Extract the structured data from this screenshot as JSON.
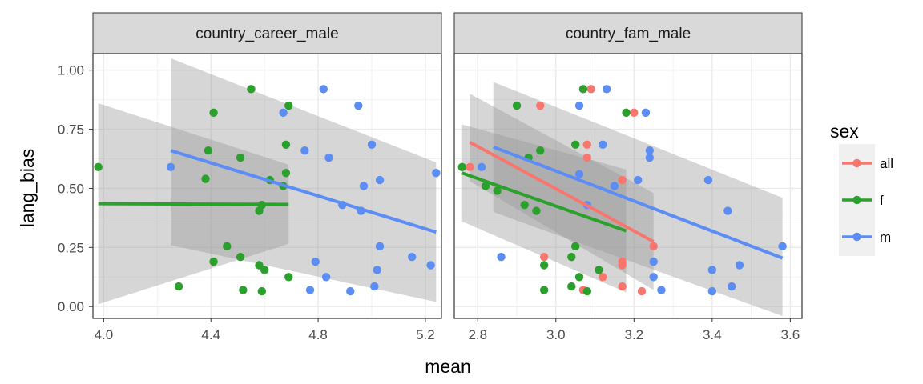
{
  "chart_data": {
    "type": "scatter",
    "x_label": "mean",
    "y_label": "lang_bias",
    "legend": {
      "title": "sex",
      "position": "right"
    },
    "colors": {
      "all": "#F8766D",
      "f": "#2CA02C",
      "m": "#5B8DF5"
    },
    "y_ticks": [
      "0.00",
      "0.25",
      "0.50",
      "0.75",
      "1.00"
    ],
    "y_tick_values": [
      0,
      0.25,
      0.5,
      0.75,
      1.0
    ],
    "ylim": [
      -0.05,
      1.07
    ],
    "grid": true,
    "panels": [
      {
        "title": "country_career_male",
        "xlim": [
          3.96,
          5.26
        ],
        "x_ticks": [
          "4.0",
          "4.4",
          "4.8",
          "5.2"
        ],
        "x_tick_values": [
          4.0,
          4.4,
          4.8,
          5.2
        ],
        "points": {
          "f": [
            [
              3.98,
              0.59
            ],
            [
              4.28,
              0.085
            ],
            [
              4.38,
              0.54
            ],
            [
              4.39,
              0.66
            ],
            [
              4.41,
              0.82
            ],
            [
              4.41,
              0.19
            ],
            [
              4.46,
              0.255
            ],
            [
              4.51,
              0.21
            ],
            [
              4.51,
              0.63
            ],
            [
              4.52,
              0.07
            ],
            [
              4.55,
              0.92
            ],
            [
              4.58,
              0.175
            ],
            [
              4.58,
              0.405
            ],
            [
              4.59,
              0.43
            ],
            [
              4.59,
              0.065
            ],
            [
              4.6,
              0.155
            ],
            [
              4.62,
              0.535
            ],
            [
              4.67,
              0.51
            ],
            [
              4.68,
              0.565
            ],
            [
              4.68,
              0.685
            ],
            [
              4.69,
              0.85
            ],
            [
              4.69,
              0.125
            ]
          ],
          "m": [
            [
              4.25,
              0.59
            ],
            [
              4.67,
              0.82
            ],
            [
              4.75,
              0.66
            ],
            [
              4.77,
              0.07
            ],
            [
              4.79,
              0.19
            ],
            [
              4.82,
              0.92
            ],
            [
              4.83,
              0.125
            ],
            [
              4.84,
              0.63
            ],
            [
              4.89,
              0.43
            ],
            [
              4.92,
              0.065
            ],
            [
              4.95,
              0.85
            ],
            [
              4.96,
              0.405
            ],
            [
              4.97,
              0.51
            ],
            [
              5.0,
              0.685
            ],
            [
              5.01,
              0.085
            ],
            [
              5.02,
              0.155
            ],
            [
              5.03,
              0.535
            ],
            [
              5.03,
              0.255
            ],
            [
              5.15,
              0.21
            ],
            [
              5.22,
              0.175
            ],
            [
              5.24,
              0.565
            ]
          ]
        },
        "fits": {
          "f": {
            "x": [
              3.98,
              4.69
            ],
            "y": [
              0.435,
              0.432
            ],
            "band_lo": [
              0.01,
              0.265
            ],
            "band_hi": [
              0.86,
              0.6
            ]
          },
          "m": {
            "x": [
              4.25,
              5.24
            ],
            "y": [
              0.66,
              0.315
            ],
            "band_lo": [
              0.26,
              0.02
            ],
            "band_hi": [
              1.05,
              0.61
            ]
          }
        }
      },
      {
        "title": "country_fam_male",
        "xlim": [
          2.74,
          3.63
        ],
        "x_ticks": [
          "2.8",
          "3.0",
          "3.2",
          "3.4",
          "3.6"
        ],
        "x_tick_values": [
          2.8,
          3.0,
          3.2,
          3.4,
          3.6
        ],
        "points": {
          "all": [
            [
              2.78,
              0.59
            ],
            [
              2.96,
              0.85
            ],
            [
              2.97,
              0.21
            ],
            [
              3.07,
              0.07
            ],
            [
              3.08,
              0.685
            ],
            [
              3.08,
              0.63
            ],
            [
              3.09,
              0.92
            ],
            [
              3.12,
              0.125
            ],
            [
              3.17,
              0.175
            ],
            [
              3.17,
              0.085
            ],
            [
              3.17,
              0.535
            ],
            [
              3.17,
              0.19
            ],
            [
              3.2,
              0.82
            ],
            [
              3.22,
              0.065
            ],
            [
              3.25,
              0.255
            ]
          ],
          "f": [
            [
              2.76,
              0.59
            ],
            [
              2.82,
              0.51
            ],
            [
              2.85,
              0.49
            ],
            [
              2.9,
              0.85
            ],
            [
              2.92,
              0.43
            ],
            [
              2.93,
              0.63
            ],
            [
              2.95,
              0.405
            ],
            [
              2.96,
              0.66
            ],
            [
              2.97,
              0.175
            ],
            [
              2.97,
              0.07
            ],
            [
              3.04,
              0.21
            ],
            [
              3.04,
              0.085
            ],
            [
              3.05,
              0.255
            ],
            [
              3.05,
              0.685
            ],
            [
              3.06,
              0.125
            ],
            [
              3.07,
              0.92
            ],
            [
              3.08,
              0.065
            ],
            [
              3.11,
              0.155
            ],
            [
              3.18,
              0.82
            ]
          ],
          "m": [
            [
              2.81,
              0.59
            ],
            [
              2.86,
              0.21
            ],
            [
              3.06,
              0.85
            ],
            [
              3.06,
              0.56
            ],
            [
              3.08,
              0.43
            ],
            [
              3.12,
              0.685
            ],
            [
              3.13,
              0.92
            ],
            [
              3.15,
              0.51
            ],
            [
              3.21,
              0.535
            ],
            [
              3.23,
              0.82
            ],
            [
              3.24,
              0.66
            ],
            [
              3.24,
              0.63
            ],
            [
              3.25,
              0.125
            ],
            [
              3.25,
              0.19
            ],
            [
              3.27,
              0.07
            ],
            [
              3.39,
              0.535
            ],
            [
              3.4,
              0.155
            ],
            [
              3.4,
              0.065
            ],
            [
              3.44,
              0.405
            ],
            [
              3.45,
              0.085
            ],
            [
              3.47,
              0.175
            ],
            [
              3.58,
              0.255
            ]
          ]
        },
        "fits": {
          "all": {
            "x": [
              2.78,
              3.25
            ],
            "y": [
              0.695,
              0.275
            ],
            "band_lo": [
              0.53,
              0.07
            ],
            "band_hi": [
              0.9,
              0.48
            ]
          },
          "f": {
            "x": [
              2.76,
              3.18
            ],
            "y": [
              0.565,
              0.32
            ],
            "band_lo": [
              0.36,
              0.06
            ],
            "band_hi": [
              0.77,
              0.58
            ]
          },
          "m": {
            "x": [
              2.84,
              3.58
            ],
            "y": [
              0.675,
              0.205
            ],
            "band_lo": [
              0.4,
              -0.04
            ],
            "band_hi": [
              0.95,
              0.46
            ]
          }
        }
      }
    ]
  }
}
